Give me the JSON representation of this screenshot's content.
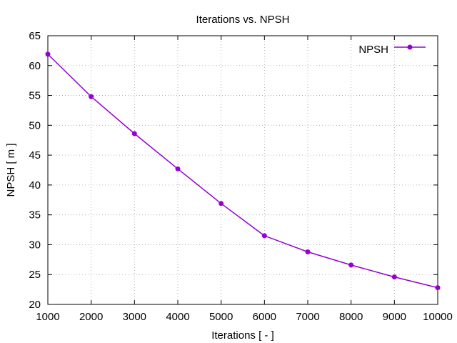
{
  "chart_data": {
    "type": "line",
    "title": "Iterations  vs. NPSH",
    "xlabel": "Iterations [ - ]",
    "ylabel": "NPSH [ m ]",
    "xlim": [
      1000,
      10000
    ],
    "ylim": [
      20,
      65
    ],
    "xticks": [
      "1000",
      "2000",
      "3000",
      "4000",
      "5000",
      "6000",
      "7000",
      "8000",
      "9000",
      "10000"
    ],
    "yticks": [
      "20",
      "25",
      "30",
      "35",
      "40",
      "45",
      "50",
      "55",
      "60",
      "65"
    ],
    "grid": true,
    "legend_position": "top-right",
    "series": [
      {
        "name": "NPSH",
        "color": "#9400d3",
        "marker": "circle",
        "x": [
          1000,
          2000,
          3000,
          4000,
          5000,
          6000,
          7000,
          8000,
          9000,
          10000
        ],
        "y": [
          61.9,
          54.8,
          48.6,
          42.7,
          36.9,
          31.5,
          28.8,
          26.6,
          24.6,
          22.8
        ]
      }
    ]
  }
}
